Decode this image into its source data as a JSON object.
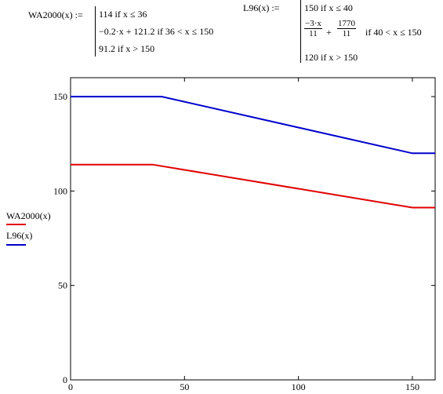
{
  "definitions": {
    "wa2000": {
      "name": "WA2000(x) :=",
      "cases": [
        "114  if  x ≤ 36",
        "−0.2·x + 121.2  if  36 < x ≤ 150",
        "91.2  if  x > 150"
      ]
    },
    "l96": {
      "name": "L96(x) :=",
      "case1": "150  if  x ≤ 40",
      "case2_num_a": "−3·x",
      "case2_den_a": "11",
      "case2_op": "+",
      "case2_num_b": "1770",
      "case2_den_b": "11",
      "case2_cond": "if  40 < x ≤ 150",
      "case3": "120  if  x > 150"
    }
  },
  "chart_data": {
    "type": "line",
    "xlim": [
      0,
      160
    ],
    "ylim": [
      0,
      160
    ],
    "x_ticks": [
      0,
      50,
      100,
      150
    ],
    "y_ticks": [
      0,
      50,
      100,
      150
    ],
    "x_tick_labels": [
      "0",
      "50",
      "100",
      "150"
    ],
    "y_tick_labels": [
      "0",
      "50",
      "100",
      "150"
    ],
    "grid": false,
    "legend_placement": "left",
    "series": [
      {
        "name": "WA2000(x)",
        "color": "#e00000",
        "x": [
          0,
          36,
          150,
          160
        ],
        "y": [
          114,
          114,
          91.2,
          91.2
        ]
      },
      {
        "name": "L96(x)",
        "color": "#0000cc",
        "x": [
          0,
          40,
          150,
          160
        ],
        "y": [
          150,
          150,
          120,
          120
        ]
      }
    ]
  }
}
